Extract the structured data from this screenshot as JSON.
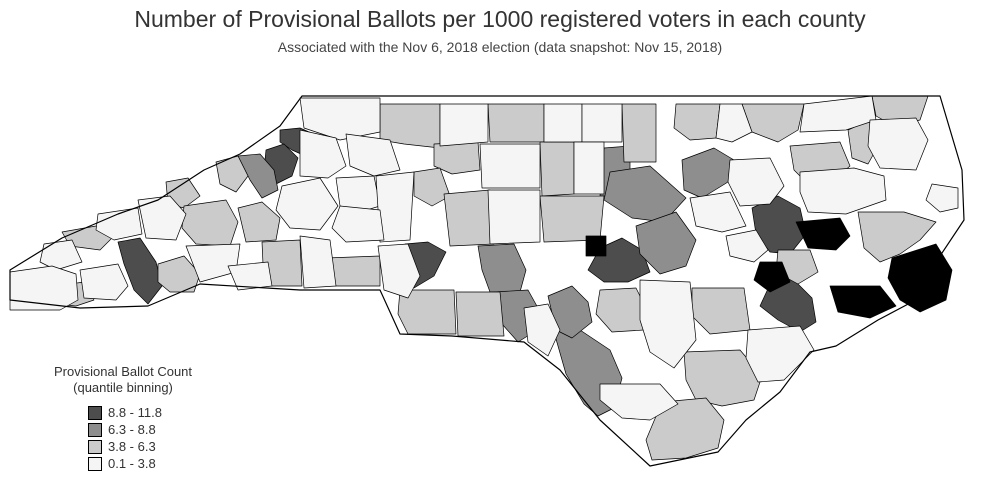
{
  "title": "Number of Provisional Ballots per 1000 registered voters in each county",
  "subtitle": "Associated with the Nov 6, 2018 election (data snapshot: Nov 15, 2018)",
  "legend": {
    "title_line1": "Provisional Ballot Count",
    "title_line2": "(quantile binning)",
    "items": [
      {
        "label": "8.8 - 11.8",
        "color": "#4d4d4d"
      },
      {
        "label": "6.3 - 8.8",
        "color": "#8e8e8e"
      },
      {
        "label": "3.8 - 6.3",
        "color": "#cbcbcb"
      },
      {
        "label": "0.1 - 3.8",
        "color": "#f5f5f5"
      }
    ]
  },
  "bins": [
    "8.8 - 11.8",
    "6.3 - 8.8",
    "3.8 - 6.3",
    "0.1 - 3.8"
  ],
  "counties": [
    {
      "bin": 0
    },
    {
      "bin": 0
    },
    {
      "bin": 0
    },
    {
      "bin": 0
    },
    {
      "bin": 0
    },
    {
      "bin": 0
    },
    {
      "bin": 0
    },
    {
      "bin": 1
    },
    {
      "bin": 1
    },
    {
      "bin": 1
    },
    {
      "bin": 1
    },
    {
      "bin": 1
    },
    {
      "bin": 1
    },
    {
      "bin": 1
    },
    {
      "bin": 1
    },
    {
      "bin": 1
    },
    {
      "bin": 2
    },
    {
      "bin": 2
    },
    {
      "bin": 2
    },
    {
      "bin": 2
    },
    {
      "bin": 2
    },
    {
      "bin": 2
    },
    {
      "bin": 2
    },
    {
      "bin": 2
    },
    {
      "bin": 2
    },
    {
      "bin": 2
    },
    {
      "bin": 2
    },
    {
      "bin": 2
    },
    {
      "bin": 2
    },
    {
      "bin": 2
    },
    {
      "bin": 2
    },
    {
      "bin": 2
    },
    {
      "bin": 2
    },
    {
      "bin": 2
    },
    {
      "bin": 2
    },
    {
      "bin": 2
    },
    {
      "bin": 2
    },
    {
      "bin": 2
    },
    {
      "bin": 2
    },
    {
      "bin": 2
    },
    {
      "bin": 2
    },
    {
      "bin": 2
    },
    {
      "bin": 2
    },
    {
      "bin": 2
    },
    {
      "bin": 2
    },
    {
      "bin": 2
    },
    {
      "bin": 3
    },
    {
      "bin": 3
    },
    {
      "bin": 3
    },
    {
      "bin": 3
    },
    {
      "bin": 3
    },
    {
      "bin": 3
    },
    {
      "bin": 3
    },
    {
      "bin": 3
    },
    {
      "bin": 3
    },
    {
      "bin": 3
    },
    {
      "bin": 3
    },
    {
      "bin": 3
    },
    {
      "bin": 3
    },
    {
      "bin": 3
    },
    {
      "bin": 3
    },
    {
      "bin": 3
    },
    {
      "bin": 3
    },
    {
      "bin": 3
    },
    {
      "bin": 3
    },
    {
      "bin": 3
    },
    {
      "bin": 3
    },
    {
      "bin": 3
    },
    {
      "bin": 3
    },
    {
      "bin": 3
    },
    {
      "bin": 3
    },
    {
      "bin": 3
    },
    {
      "bin": 3
    },
    {
      "bin": 3
    },
    {
      "bin": 3
    },
    {
      "bin": 3
    },
    {
      "bin": 3
    },
    {
      "bin": 3
    },
    {
      "bin": 3
    },
    {
      "bin": 3
    }
  ]
}
